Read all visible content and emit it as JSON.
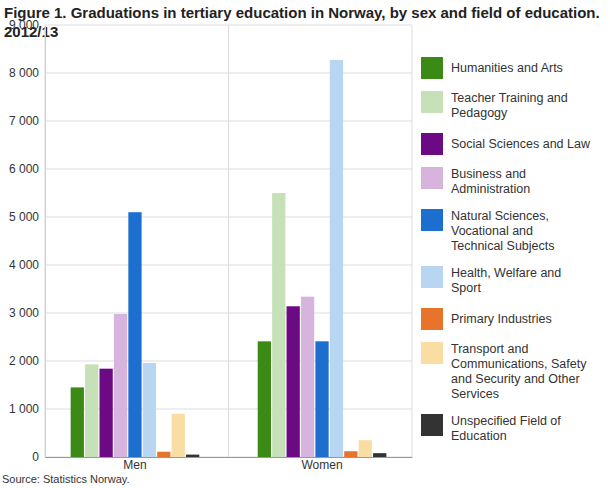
{
  "chart_data": {
    "type": "bar",
    "title": "Figure 1. Graduations in tertiary education in Norway, by sex and field of education. 2012/13",
    "source": "Source: Statistics Norway.",
    "categories": [
      "Men",
      "Women"
    ],
    "series": [
      {
        "name": "Humanities and Arts",
        "color": "#3b8a16",
        "values": [
          1450,
          2410
        ]
      },
      {
        "name": "Teacher Training and Pedagogy",
        "color": "#c6e0b8",
        "values": [
          1930,
          5500
        ]
      },
      {
        "name": "Social Sciences and Law",
        "color": "#6b0a83",
        "values": [
          1840,
          3140
        ]
      },
      {
        "name": "Business and Administration",
        "color": "#d6b4de",
        "values": [
          2980,
          3340
        ]
      },
      {
        "name": "Natural Sciences, Vocational and Technical Subjects",
        "color": "#1c6fcf",
        "values": [
          5100,
          2410
        ]
      },
      {
        "name": "Health, Welfare and Sport",
        "color": "#b8d5f1",
        "values": [
          1960,
          8270
        ]
      },
      {
        "name": "Primary Industries",
        "color": "#e8732a",
        "values": [
          110,
          120
        ]
      },
      {
        "name": "Transport and Communications, Safety and Security and Other Services",
        "color": "#f9dda2",
        "values": [
          900,
          350
        ]
      },
      {
        "name": "Unspecified Field of Education",
        "color": "#333333",
        "values": [
          50,
          80
        ]
      }
    ],
    "ylim": [
      0,
      9000
    ],
    "yticks": [
      0,
      {
        "value": 1000,
        "label": "1 000"
      },
      {
        "value": 2000,
        "label": "2 000"
      },
      {
        "value": 3000,
        "label": "3 000"
      },
      {
        "value": 4000,
        "label": "4 000"
      },
      {
        "value": 5000,
        "label": "5 000"
      },
      {
        "value": 6000,
        "label": "6 000"
      },
      {
        "value": 7000,
        "label": "7 000"
      },
      {
        "value": 8000,
        "label": "8 000"
      },
      {
        "value": 9000,
        "label": "9 000"
      }
    ],
    "grid": true,
    "legend": "right"
  }
}
